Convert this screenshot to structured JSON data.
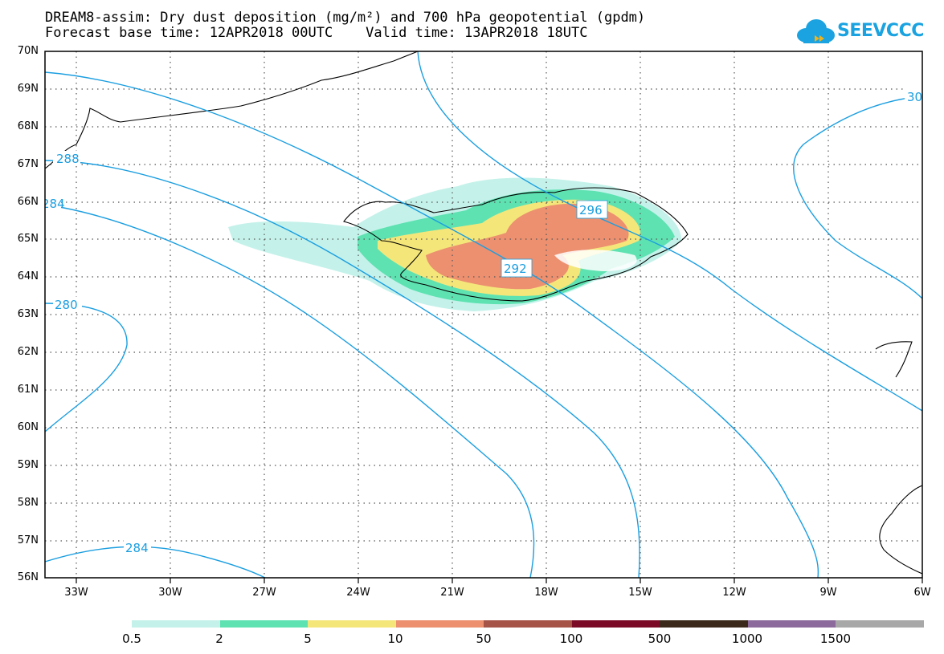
{
  "title": {
    "line1": "DREAM8-assim: Dry dust deposition (mg/m²) and 700 hPa geopotential (gpdm)",
    "line2": "Forecast base time: 12APR2018 00UTC    Valid time: 13APR2018 18UTC"
  },
  "logo": {
    "text": "SEEVCCC",
    "icon": "cloud-logo-icon"
  },
  "map": {
    "lat_labels": [
      "70N",
      "69N",
      "68N",
      "67N",
      "66N",
      "65N",
      "64N",
      "63N",
      "62N",
      "61N",
      "60N",
      "59N",
      "58N",
      "57N",
      "56N"
    ],
    "lon_labels": [
      "33W",
      "30W",
      "27W",
      "24W",
      "21W",
      "18W",
      "15W",
      "12W",
      "9W",
      "6W"
    ],
    "contour_labels": [
      "288",
      "284",
      "280",
      "284",
      "292",
      "296",
      "30"
    ]
  },
  "colorbar": {
    "labels": [
      "0.5",
      "2",
      "5",
      "10",
      "50",
      "100",
      "500",
      "1000",
      "1500"
    ],
    "colors": [
      "#c4f2ea",
      "#5ee2b2",
      "#f5e67a",
      "#ec9070",
      "#a65448",
      "#7a0a26",
      "#3b2a1c",
      "#8c6a9c",
      "#a8a8a8"
    ]
  },
  "colors": {
    "contour": "#1a9ee0",
    "coast": "#000000",
    "dust_low": "#c4f2ea",
    "dust_mid": "#5ee2b2",
    "dust_yel": "#f5e67a",
    "dust_high": "#ec9070"
  }
}
